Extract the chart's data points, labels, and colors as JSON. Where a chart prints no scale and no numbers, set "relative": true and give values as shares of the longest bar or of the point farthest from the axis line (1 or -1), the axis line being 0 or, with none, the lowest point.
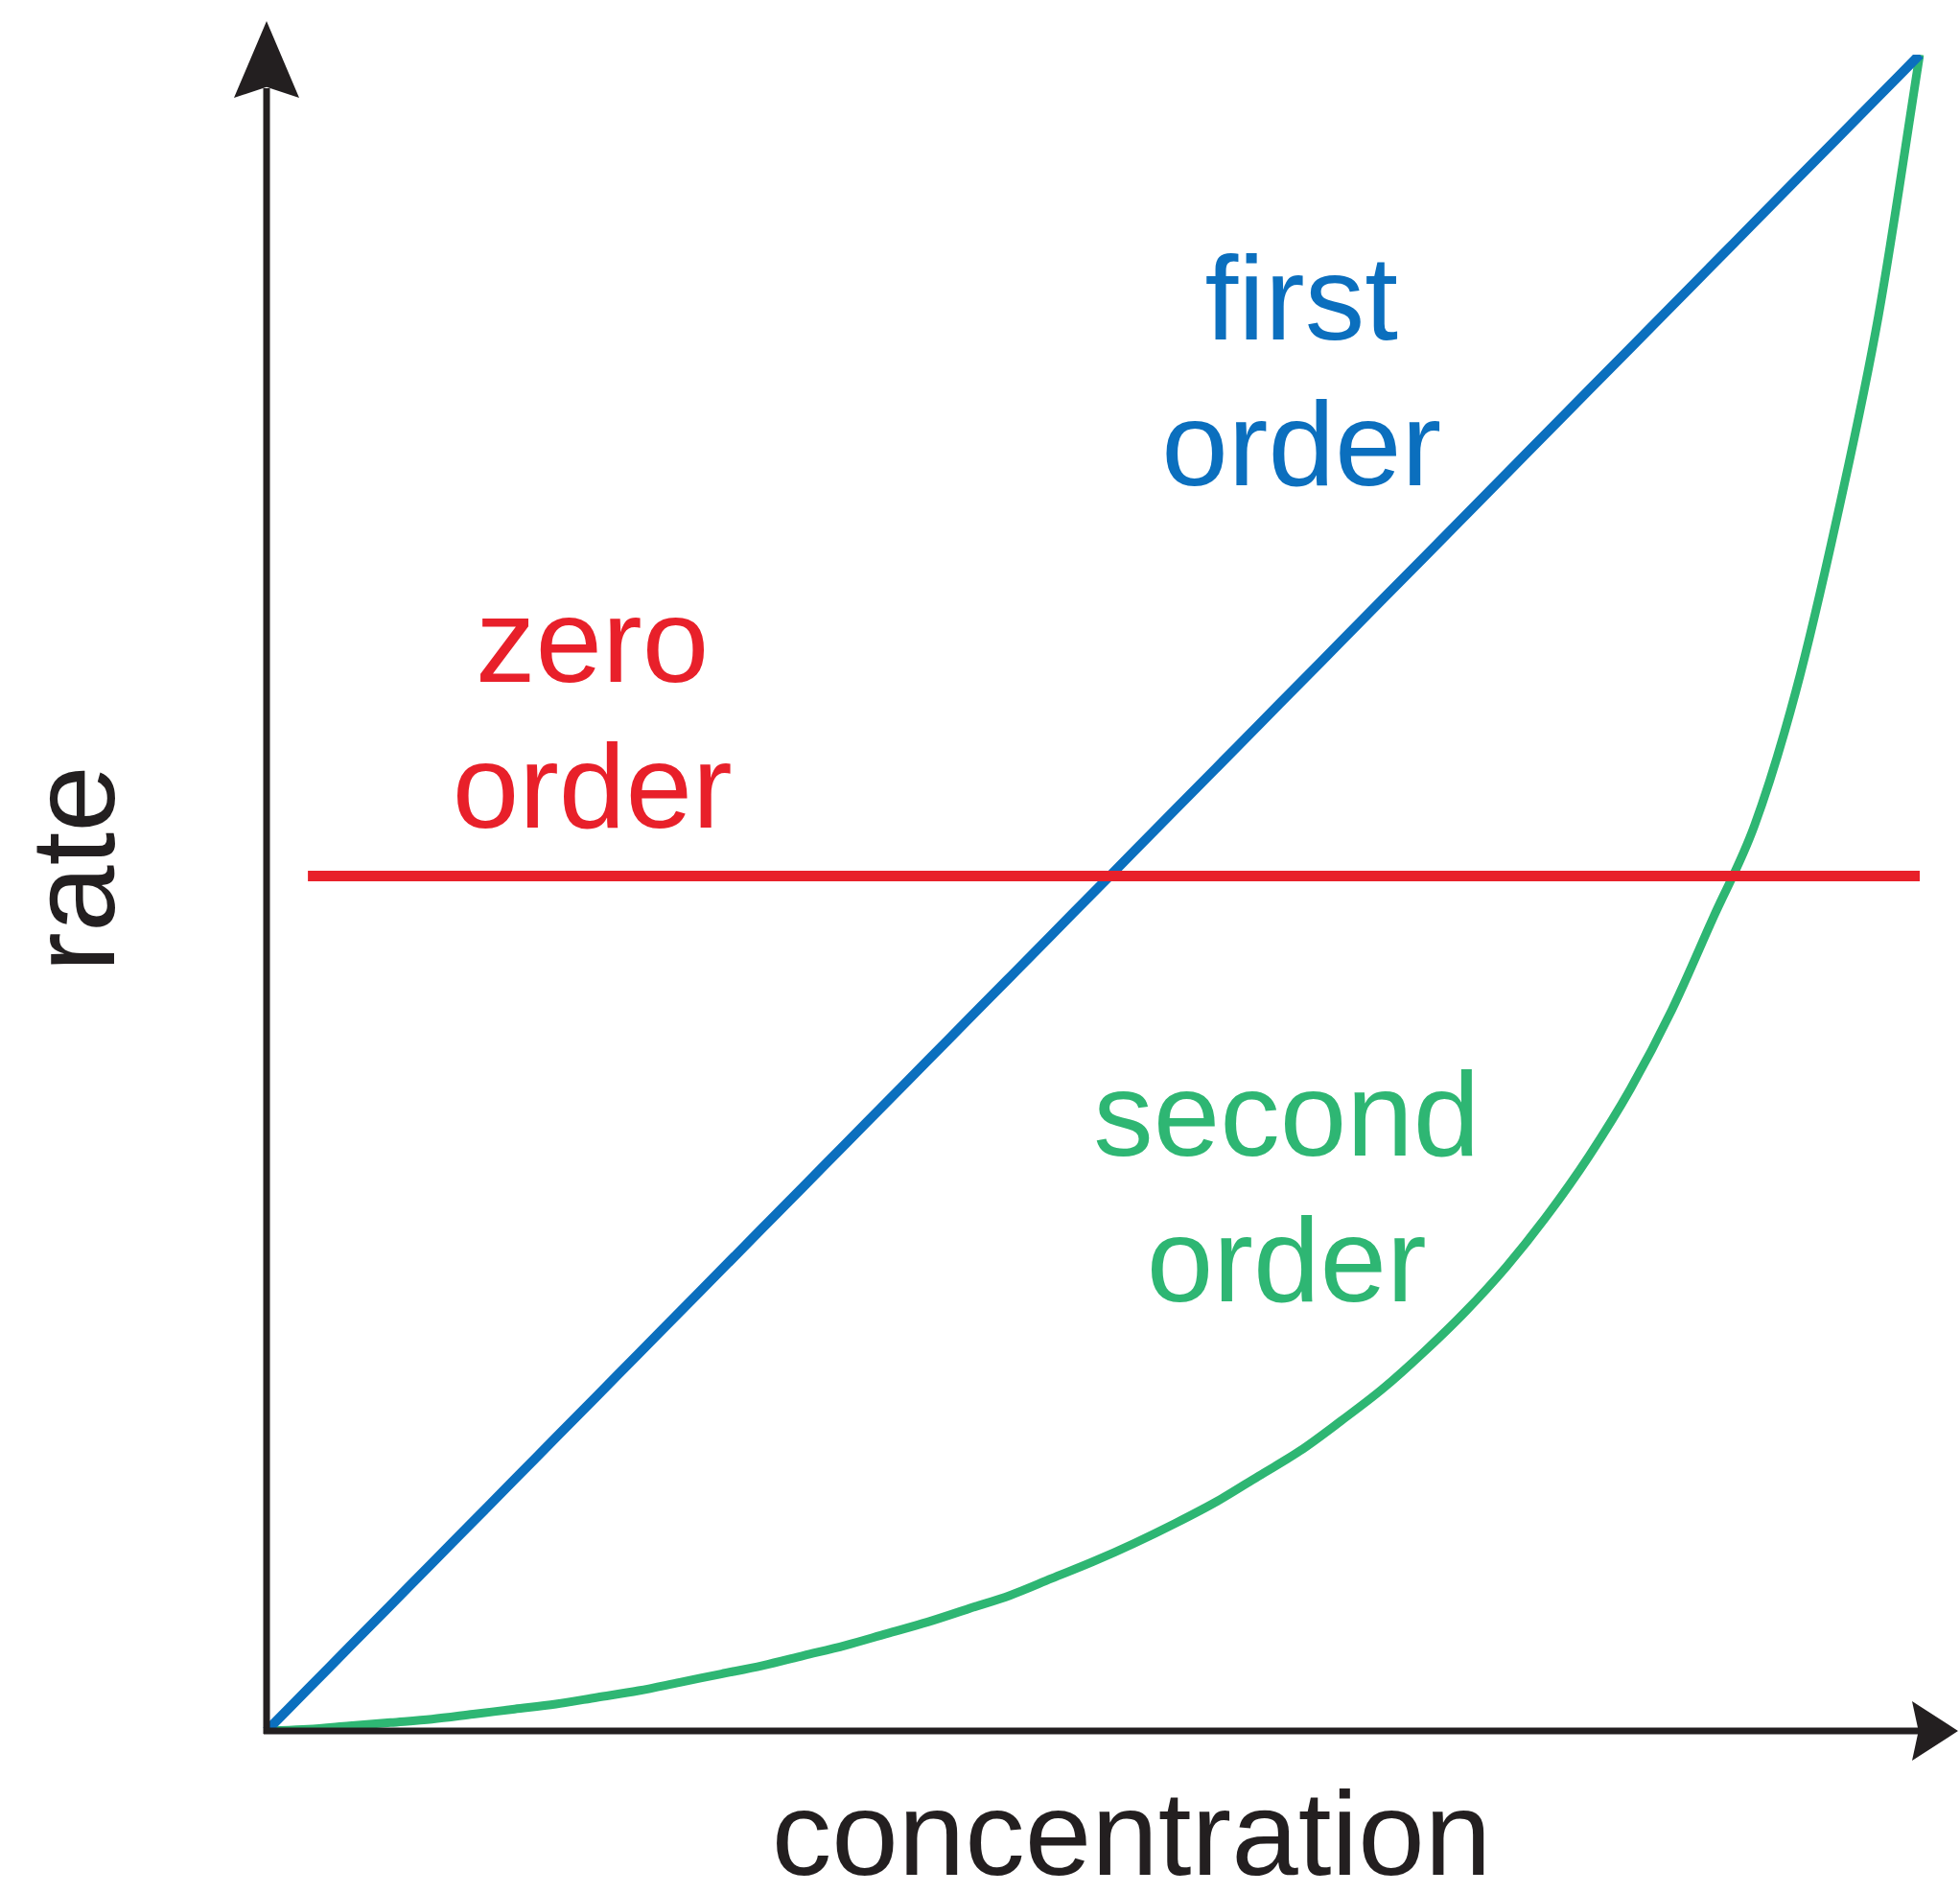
{
  "chart_data": {
    "type": "line",
    "xlabel": "concentration",
    "ylabel": "rate",
    "relative": true,
    "marker": "none",
    "categories": [
      null,
      null,
      null,
      null,
      null,
      null,
      null,
      null,
      null,
      null,
      null,
      null,
      null,
      null,
      null,
      null,
      null,
      null,
      null,
      null,
      null,
      null,
      null,
      null,
      null,
      null,
      null,
      null,
      null,
      null,
      null,
      null,
      null,
      null,
      null,
      null,
      null,
      null,
      null,
      null,
      null
    ],
    "series": [
      {
        "name": "zero order",
        "color": "#e8202a",
        "values": [
          null,
          0.51,
          0.51,
          0.51,
          0.51,
          0.51,
          0.51,
          0.51,
          0.51,
          0.51,
          0.51,
          0.51,
          0.51,
          0.51,
          0.51,
          0.51,
          0.51,
          0.51,
          0.51,
          0.51,
          0.51,
          0.51,
          0.51,
          0.51,
          0.51,
          0.51,
          0.51,
          0.51,
          0.51,
          0.51,
          0.51,
          0.51,
          0.51,
          0.51,
          0.51,
          0.51,
          0.51,
          0.51,
          0.51,
          0.51,
          0.51
        ]
      },
      {
        "name": "first order",
        "color": "#0b6fbe",
        "values": [
          0,
          0.025,
          0.05,
          0.075,
          0.1,
          0.125,
          0.15,
          0.175,
          0.2,
          0.225,
          0.25,
          0.275,
          0.3,
          0.325,
          0.35,
          0.375,
          0.4,
          0.425,
          0.45,
          0.475,
          0.5,
          0.525,
          0.55,
          0.575,
          0.6,
          0.625,
          0.65,
          0.675,
          0.7,
          0.725,
          0.75,
          0.775,
          0.8,
          0.825,
          0.85,
          0.875,
          0.9,
          0.925,
          0.95,
          0.975,
          1
        ]
      },
      {
        "name": "second order",
        "color": "#2eb673",
        "values": [
          0,
          0.001,
          0.003,
          0.005,
          0.007,
          0.01,
          0.013,
          0.016,
          0.02,
          0.024,
          0.029,
          0.034,
          0.039,
          0.045,
          0.051,
          0.058,
          0.065,
          0.073,
          0.081,
          0.091,
          0.101,
          0.112,
          0.124,
          0.137,
          0.152,
          0.167,
          0.185,
          0.204,
          0.226,
          0.25,
          0.277,
          0.308,
          0.343,
          0.383,
          0.43,
          0.485,
          0.54,
          0.62,
          0.724,
          0.844,
          1
        ]
      }
    ]
  }
}
